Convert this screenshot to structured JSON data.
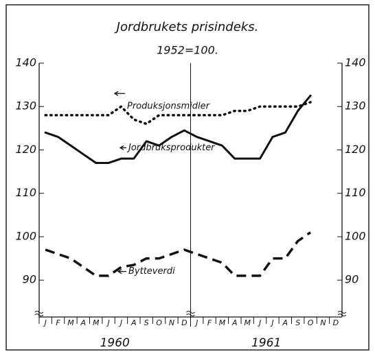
{
  "chart_data": {
    "type": "line",
    "title": "Jordbrukets prisindeks.",
    "subtitle": "1952=100.",
    "categories": [
      "J",
      "F",
      "M",
      "A",
      "M",
      "J",
      "J",
      "A",
      "S",
      "O",
      "N",
      "D",
      "J",
      "F",
      "M",
      "A",
      "M",
      "J",
      "J",
      "A",
      "S",
      "O",
      "N",
      "D"
    ],
    "year_labels": [
      "1960",
      "1961"
    ],
    "series": [
      {
        "name": "Produksjonsmidler",
        "color": "#111111",
        "style": "dotted",
        "values": [
          128,
          128,
          128,
          128,
          128,
          128,
          130,
          127,
          126,
          128,
          128,
          128,
          128,
          128,
          128,
          129,
          129,
          130,
          130,
          130,
          130,
          131,
          null,
          null
        ]
      },
      {
        "name": "Jordbruksprodukter",
        "color": "#111111",
        "style": "solid",
        "values": [
          124,
          123,
          121,
          119,
          117,
          117,
          118,
          118,
          122,
          121,
          123,
          124.5,
          123,
          122,
          121,
          118,
          118,
          118,
          123,
          124,
          129,
          132.5,
          null,
          null
        ]
      },
      {
        "name": "Bytteverdi",
        "color": "#111111",
        "style": "dashed",
        "values": [
          97,
          96,
          95,
          93,
          91,
          91,
          93,
          93.5,
          95,
          95,
          96,
          97,
          96,
          95,
          94,
          91,
          91,
          91,
          95,
          95,
          99,
          101,
          null,
          null
        ]
      }
    ],
    "ylim": [
      81.5,
      140
    ],
    "yticks": [
      90,
      100,
      110,
      120,
      130,
      140
    ]
  }
}
